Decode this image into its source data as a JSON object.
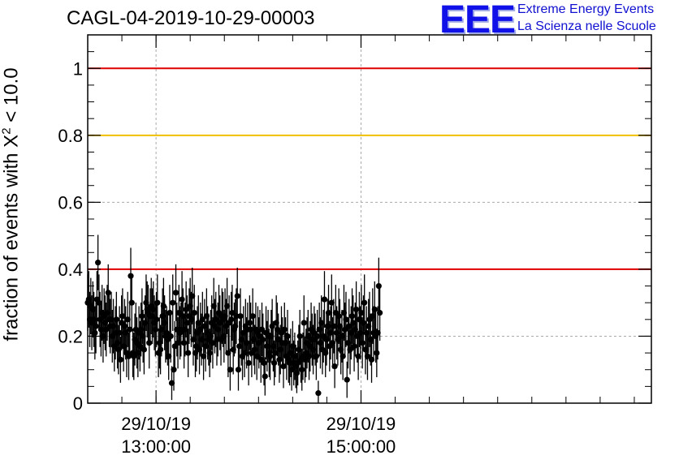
{
  "title": "CAGL-04-2019-10-29-00003",
  "logo": {
    "text": "EEE",
    "line1": "Extreme Energy Events",
    "line2": "La Scienza nelle Scuole"
  },
  "colors": {
    "red_line": "#e00000",
    "yellow_line": "#f0c000",
    "logo_blue": "#1010e8",
    "marker": "#000000"
  },
  "chart_data": {
    "type": "scatter",
    "ylabel": {
      "before": "fraction of events with X",
      "sup": "2",
      "after": " < 10.0"
    },
    "ylim": [
      0,
      1.1
    ],
    "xlim": [
      "29/10/19 12:20:00",
      "29/10/19 17:50:00"
    ],
    "x_ticks": [
      {
        "x": "29/10/19 13:00:00",
        "date": "29/10/19",
        "time": "13:00:00"
      },
      {
        "x": "29/10/19 15:00:00",
        "date": "29/10/19",
        "time": "15:00:00"
      }
    ],
    "y_ticks": [
      "0",
      "0.2",
      "0.4",
      "0.6",
      "0.8",
      "1"
    ],
    "grid": true,
    "reference_lines": [
      {
        "y": 1.0,
        "color": "#e00000"
      },
      {
        "y": 0.8,
        "color": "#f0c000"
      },
      {
        "y": 0.4,
        "color": "#e00000"
      }
    ],
    "series": [
      {
        "x_start": "29/10/19 12:20:00",
        "x_step_seconds": 36,
        "y": [
          0.3,
          0.31,
          0.25,
          0.29,
          0.24,
          0.28,
          0.25,
          0.21,
          0.23,
          0.31,
          0.42,
          0.3,
          0.25,
          0.22,
          0.27,
          0.2,
          0.26,
          0.24,
          0.22,
          0.27,
          0.33,
          0.25,
          0.23,
          0.25,
          0.2,
          0.23,
          0.17,
          0.21,
          0.25,
          0.18,
          0.16,
          0.21,
          0.13,
          0.24,
          0.26,
          0.17,
          0.23,
          0.21,
          0.15,
          0.25,
          0.14,
          0.22,
          0.38,
          0.3,
          0.15,
          0.14,
          0.19,
          0.22,
          0.18,
          0.15,
          0.21,
          0.17,
          0.22,
          0.26,
          0.2,
          0.16,
          0.24,
          0.3,
          0.28,
          0.27,
          0.18,
          0.26,
          0.29,
          0.26,
          0.28,
          0.24,
          0.22,
          0.25,
          0.3,
          0.15,
          0.18,
          0.16,
          0.22,
          0.26,
          0.29,
          0.24,
          0.2,
          0.21,
          0.19,
          0.14,
          0.27,
          0.2,
          0.06,
          0.3,
          0.1,
          0.17,
          0.33,
          0.22,
          0.18,
          0.27,
          0.21,
          0.22,
          0.31,
          0.26,
          0.18,
          0.22,
          0.28,
          0.24,
          0.15,
          0.26,
          0.29,
          0.25,
          0.32,
          0.19,
          0.27,
          0.15,
          0.17,
          0.21,
          0.24,
          0.16,
          0.22,
          0.19,
          0.25,
          0.14,
          0.23,
          0.17,
          0.26,
          0.21,
          0.19,
          0.15,
          0.2,
          0.24,
          0.18,
          0.29,
          0.23,
          0.25,
          0.19,
          0.22,
          0.27,
          0.24,
          0.19,
          0.26,
          0.25,
          0.2,
          0.26,
          0.23,
          0.29,
          0.15,
          0.24,
          0.1,
          0.25,
          0.27,
          0.16,
          0.22,
          0.23,
          0.26,
          0.32,
          0.1,
          0.17,
          0.26,
          0.19,
          0.14,
          0.21,
          0.15,
          0.23,
          0.18,
          0.22,
          0.12,
          0.24,
          0.22,
          0.15,
          0.26,
          0.19,
          0.16,
          0.22,
          0.14,
          0.21,
          0.18,
          0.2,
          0.13,
          0.22,
          0.19,
          0.12,
          0.08,
          0.21,
          0.17,
          0.2,
          0.15,
          0.14,
          0.2,
          0.23,
          0.17,
          0.12,
          0.15,
          0.24,
          0.22,
          0.19,
          0.13,
          0.16,
          0.21,
          0.18,
          0.11,
          0.22,
          0.18,
          0.14,
          0.2,
          0.13,
          0.12,
          0.15,
          0.1,
          0.17,
          0.12,
          0.14,
          0.11,
          0.09,
          0.12,
          0.16,
          0.2,
          0.13,
          0.1,
          0.14,
          0.24,
          0.13,
          0.15,
          0.18,
          0.2,
          0.14,
          0.17,
          0.22,
          0.19,
          0.16,
          0.21,
          0.19,
          0.14,
          0.2,
          0.03,
          0.22,
          0.18,
          0.24,
          0.16,
          0.2,
          0.31,
          0.15,
          0.19,
          0.23,
          0.27,
          0.17,
          0.21,
          0.3,
          0.18,
          0.23,
          0.11,
          0.27,
          0.21,
          0.19,
          0.26,
          0.23,
          0.16,
          0.2,
          0.14,
          0.27,
          0.22,
          0.25,
          0.07,
          0.18,
          0.23,
          0.16,
          0.21,
          0.26,
          0.24,
          0.17,
          0.22,
          0.28,
          0.2,
          0.14,
          0.25,
          0.21,
          0.27,
          0.18,
          0.24,
          0.3,
          0.16,
          0.21,
          0.14,
          0.23,
          0.25,
          0.19,
          0.13,
          0.26,
          0.21,
          0.28,
          0.2,
          0.15,
          0.21,
          0.35,
          0.27
        ]
      }
    ]
  }
}
